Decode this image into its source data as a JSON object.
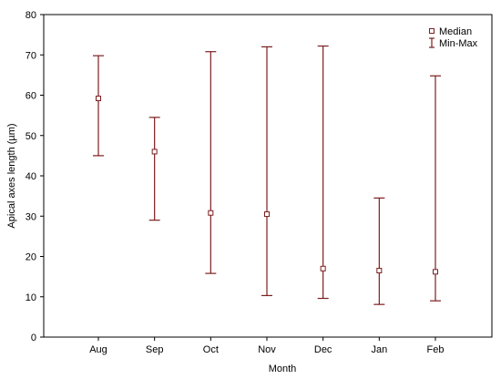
{
  "chart_data": {
    "type": "errorbar",
    "xlabel": "Month",
    "ylabel": "Apical axes length (µm)",
    "ylim": [
      0,
      80
    ],
    "yticks": [
      0,
      10,
      20,
      30,
      40,
      50,
      60,
      70,
      80
    ],
    "categories": [
      "Aug",
      "Sep",
      "Oct",
      "Nov",
      "Dec",
      "Jan",
      "Feb"
    ],
    "series": [
      {
        "name": "Median",
        "marker": "square",
        "values": [
          59.2,
          46.0,
          30.8,
          30.5,
          17.0,
          16.5,
          16.2
        ]
      },
      {
        "name": "Min-Max",
        "marker": "errorbar",
        "min": [
          45.0,
          29.0,
          15.8,
          10.3,
          9.6,
          8.1,
          9.0
        ],
        "max": [
          69.8,
          54.5,
          70.8,
          72.0,
          72.2,
          34.5,
          64.8
        ]
      }
    ],
    "legend": {
      "position": "top-right",
      "entries": [
        "Median",
        "Min-Max"
      ]
    },
    "colors": {
      "series": "#7b1e1e",
      "axis": "#000000"
    },
    "grid": false
  }
}
